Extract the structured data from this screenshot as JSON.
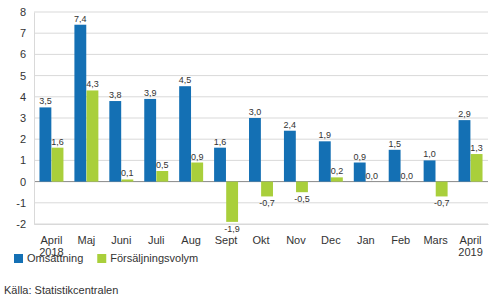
{
  "chart_data": {
    "type": "bar",
    "categories": [
      "April\n2018",
      "Maj",
      "Juni",
      "Juli",
      "Aug",
      "Sept",
      "Okt",
      "Nov",
      "Dec",
      "Jan",
      "Feb",
      "Mars",
      "April\n2019"
    ],
    "series": [
      {
        "name": "Omsättning",
        "color": "#1470b4",
        "values": [
          3.5,
          7.4,
          3.8,
          3.9,
          4.5,
          1.6,
          3.0,
          2.4,
          1.9,
          0.9,
          1.5,
          1.0,
          2.9
        ],
        "value_labels": [
          "3,5",
          "7,4",
          "3,8",
          "3,9",
          "4,5",
          "1,6",
          "3,0",
          "2,4",
          "1,9",
          "0,9",
          "1,5",
          "1,0",
          "2,9"
        ]
      },
      {
        "name": "Försäljningsvolym",
        "color": "#a9cf3b",
        "values": [
          1.6,
          4.3,
          0.1,
          0.5,
          0.9,
          -1.9,
          -0.7,
          -0.5,
          0.2,
          0.0,
          0.0,
          -0.7,
          1.3
        ],
        "value_labels": [
          "1,6",
          "4,3",
          "0,1",
          "0,5",
          "0,9",
          "-1,9",
          "-0,7",
          "-0,5",
          "0,2",
          "0,0",
          "0,0",
          "-0,7",
          "1,3"
        ]
      }
    ],
    "ylim": [
      -2,
      8
    ],
    "yticks": [
      -2,
      -1,
      0,
      1,
      2,
      3,
      4,
      5,
      6,
      7,
      8
    ],
    "grid": true,
    "data_labels": true,
    "legend": "bottom-left",
    "source": "Källa: Statistikcentralen"
  }
}
